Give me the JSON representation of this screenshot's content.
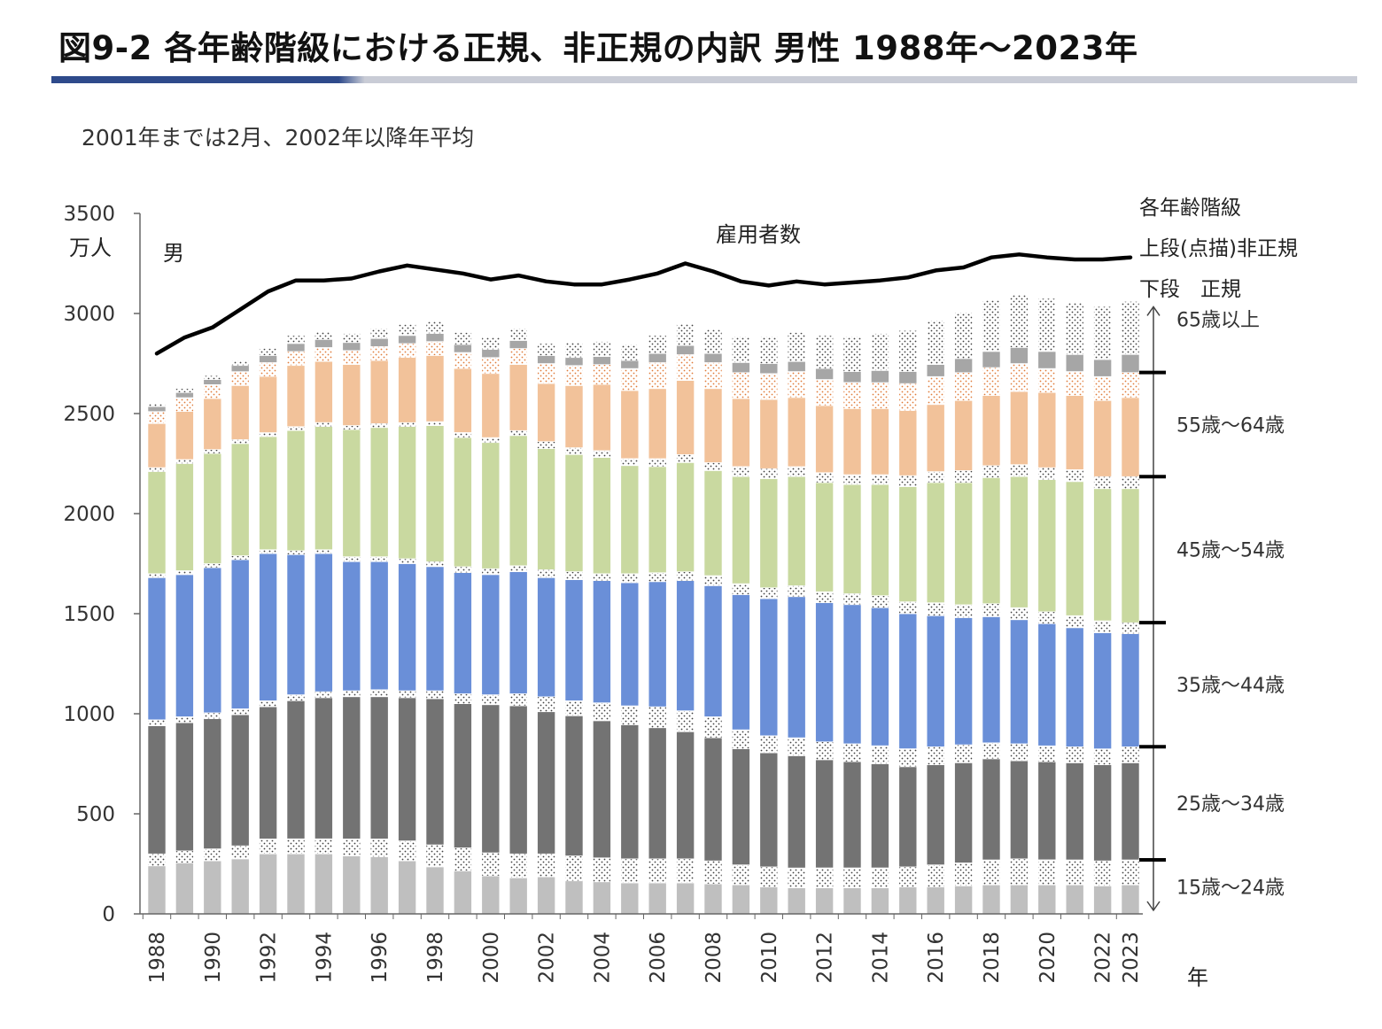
{
  "header": {
    "title": "図9-2 各年齢階級における正規、非正規の内訳 男性 1988年～2023年",
    "subtitle": "2001年までは2月、2002年以降年平均"
  },
  "colors": {
    "title_rule_dark": "#2e4a8b",
    "title_rule_light": "#c9ccd6",
    "age15_24": "#bfbfbf",
    "age25_34": "#737373",
    "age35_44": "#6a8fd8",
    "age45_54": "#c9d9a0",
    "age55_64": "#f2c29a",
    "age65_plus": "#a6a6a6",
    "nonregular_dots": "#404040",
    "nonregular_dots_55_64": "#e07b39",
    "line": "#000000"
  },
  "chart_data": {
    "type": "bar",
    "stacked": true,
    "ylim": [
      0,
      3500
    ],
    "yticks": [
      0,
      500,
      1000,
      1500,
      2000,
      2500,
      3000,
      3500
    ],
    "ytick_labels": [
      "0",
      "500",
      "1000",
      "1500",
      "2000",
      "2500",
      "3000",
      "3500"
    ],
    "ylabel": "万人",
    "corner_label": "男",
    "xlabel": "年",
    "grid": false,
    "categories": [
      "1988",
      "1989",
      "1990",
      "1991",
      "1992",
      "1993",
      "1994",
      "1995",
      "1996",
      "1997",
      "1998",
      "1999",
      "2000",
      "2001",
      "2002",
      "2003",
      "2004",
      "2005",
      "2006",
      "2007",
      "2008",
      "2009",
      "2010",
      "2011",
      "2012",
      "2013",
      "2014",
      "2015",
      "2016",
      "2017",
      "2018",
      "2019",
      "2020",
      "2021",
      "2022",
      "2023"
    ],
    "xtick_labels": [
      "1988",
      "",
      "1990",
      "",
      "1992",
      "",
      "1994",
      "",
      "1996",
      "",
      "1998",
      "",
      "2000",
      "",
      "2002",
      "",
      "2004",
      "",
      "2006",
      "",
      "2008",
      "",
      "2010",
      "",
      "2012",
      "",
      "2014",
      "",
      "2016",
      "",
      "2018",
      "",
      "2020",
      "",
      "2022",
      "2023"
    ],
    "legend": {
      "header": "各年齢階級",
      "upper": "上段(点描)非正規",
      "lower": "下段　正規"
    },
    "age_groups": [
      {
        "name": "15歳～24歳",
        "fill": "age15_24",
        "dots": "nonregular_dots"
      },
      {
        "name": "25歳～34歳",
        "fill": "age25_34",
        "dots": "nonregular_dots"
      },
      {
        "name": "35歳～44歳",
        "fill": "age35_44",
        "dots": "nonregular_dots"
      },
      {
        "name": "45歳～54歳",
        "fill": "age45_54",
        "dots": "nonregular_dots"
      },
      {
        "name": "55歳～64歳",
        "fill": "age55_64",
        "dots": "nonregular_dots_55_64"
      },
      {
        "name": "65歳以上",
        "fill": "age65_plus",
        "dots": "nonregular_dots"
      }
    ],
    "series": [
      {
        "name": "15歳～24歳 正規",
        "values": [
          240,
          255,
          265,
          275,
          300,
          300,
          300,
          290,
          285,
          265,
          235,
          215,
          190,
          180,
          185,
          165,
          160,
          155,
          155,
          155,
          150,
          145,
          135,
          130,
          130,
          130,
          130,
          135,
          135,
          140,
          145,
          145,
          145,
          145,
          140,
          145
        ]
      },
      {
        "name": "15歳～24歳 非正規",
        "values": [
          60,
          60,
          60,
          65,
          75,
          75,
          75,
          85,
          90,
          100,
          110,
          115,
          115,
          120,
          115,
          125,
          120,
          120,
          120,
          120,
          115,
          100,
          100,
          100,
          100,
          100,
          100,
          100,
          110,
          115,
          125,
          130,
          125,
          125,
          125,
          125
        ]
      },
      {
        "name": "25歳～34歳 正規",
        "values": [
          640,
          640,
          650,
          655,
          660,
          690,
          705,
          710,
          710,
          715,
          730,
          720,
          740,
          740,
          710,
          700,
          685,
          670,
          655,
          635,
          615,
          580,
          570,
          560,
          540,
          530,
          520,
          500,
          500,
          500,
          505,
          490,
          490,
          485,
          480,
          485
        ]
      },
      {
        "name": "25歳～34歳 非正規",
        "values": [
          30,
          30,
          30,
          30,
          30,
          30,
          30,
          30,
          35,
          35,
          40,
          50,
          50,
          60,
          75,
          75,
          90,
          95,
          105,
          105,
          105,
          95,
          85,
          90,
          90,
          90,
          90,
          90,
          90,
          90,
          80,
          85,
          80,
          80,
          80,
          80
        ]
      },
      {
        "name": "35歳～44歳 正規",
        "values": [
          710,
          710,
          725,
          745,
          735,
          700,
          690,
          645,
          640,
          635,
          620,
          605,
          600,
          610,
          595,
          605,
          610,
          615,
          625,
          650,
          655,
          675,
          685,
          705,
          695,
          695,
          690,
          675,
          655,
          635,
          630,
          620,
          610,
          595,
          580,
          565
        ]
      },
      {
        "name": "35歳～44歳 非正規",
        "values": [
          20,
          20,
          20,
          20,
          20,
          20,
          20,
          25,
          25,
          25,
          25,
          30,
          30,
          30,
          40,
          40,
          35,
          45,
          45,
          45,
          50,
          55,
          55,
          55,
          55,
          55,
          60,
          60,
          65,
          65,
          65,
          60,
          60,
          60,
          60,
          55
        ]
      },
      {
        "name": "45歳～54歳 正規",
        "values": [
          510,
          535,
          550,
          560,
          565,
          600,
          615,
          635,
          645,
          660,
          680,
          645,
          630,
          650,
          605,
          585,
          580,
          540,
          530,
          545,
          525,
          535,
          545,
          545,
          545,
          545,
          555,
          575,
          600,
          610,
          630,
          655,
          660,
          670,
          660,
          670
        ]
      },
      {
        "name": "45歳～54歳 非正規",
        "values": [
          20,
          20,
          20,
          20,
          20,
          20,
          20,
          20,
          20,
          20,
          20,
          25,
          25,
          25,
          35,
          35,
          35,
          35,
          40,
          40,
          40,
          50,
          50,
          50,
          50,
          50,
          50,
          55,
          55,
          60,
          60,
          60,
          60,
          60,
          60,
          60
        ]
      },
      {
        "name": "55歳～64歳 正規",
        "values": [
          220,
          240,
          255,
          270,
          280,
          305,
          305,
          305,
          315,
          325,
          330,
          320,
          320,
          330,
          290,
          310,
          330,
          340,
          350,
          370,
          370,
          340,
          345,
          345,
          335,
          330,
          330,
          325,
          335,
          350,
          350,
          365,
          375,
          370,
          380,
          395
        ]
      },
      {
        "name": "55歳～64歳 非正規",
        "values": [
          60,
          70,
          70,
          70,
          70,
          70,
          70,
          70,
          70,
          70,
          70,
          80,
          80,
          80,
          100,
          100,
          100,
          110,
          130,
          130,
          130,
          130,
          130,
          130,
          130,
          130,
          130,
          135,
          140,
          140,
          140,
          140,
          120,
          120,
          120,
          125
        ]
      },
      {
        "name": "65歳以上 正規",
        "values": [
          25,
          25,
          25,
          30,
          35,
          40,
          40,
          40,
          40,
          40,
          40,
          40,
          40,
          40,
          40,
          40,
          40,
          40,
          45,
          45,
          45,
          50,
          50,
          50,
          55,
          55,
          60,
          60,
          60,
          70,
          80,
          80,
          85,
          85,
          85,
          90
        ]
      },
      {
        "name": "65歳以上 非正規",
        "values": [
          15,
          20,
          20,
          25,
          35,
          40,
          40,
          45,
          50,
          55,
          60,
          60,
          60,
          60,
          60,
          75,
          75,
          80,
          90,
          110,
          120,
          130,
          135,
          145,
          165,
          175,
          185,
          205,
          220,
          230,
          255,
          265,
          265,
          260,
          265,
          265
        ]
      }
    ],
    "line": {
      "name": "雇用者数",
      "values": [
        2800,
        2880,
        2930,
        3020,
        3110,
        3165,
        3165,
        3175,
        3210,
        3240,
        3220,
        3200,
        3170,
        3190,
        3160,
        3145,
        3145,
        3170,
        3200,
        3250,
        3210,
        3160,
        3140,
        3160,
        3145,
        3155,
        3165,
        3180,
        3215,
        3230,
        3280,
        3295,
        3280,
        3270,
        3270,
        3280
      ]
    }
  }
}
